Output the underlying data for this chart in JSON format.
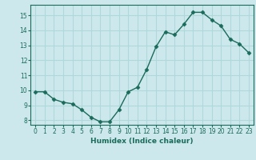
{
  "x": [
    0,
    1,
    2,
    3,
    4,
    5,
    6,
    7,
    8,
    9,
    10,
    11,
    12,
    13,
    14,
    15,
    16,
    17,
    18,
    19,
    20,
    21,
    22,
    23
  ],
  "y": [
    9.9,
    9.9,
    9.4,
    9.2,
    9.1,
    8.7,
    8.2,
    7.9,
    7.9,
    8.7,
    9.9,
    10.2,
    11.4,
    12.9,
    13.9,
    13.7,
    14.4,
    15.2,
    15.2,
    14.7,
    14.3,
    13.4,
    13.1,
    12.5
  ],
  "xlabel": "Humidex (Indice chaleur)",
  "ylim_min": 7.7,
  "ylim_max": 15.7,
  "xlim_min": -0.5,
  "xlim_max": 23.5,
  "yticks": [
    8,
    9,
    10,
    11,
    12,
    13,
    14,
    15
  ],
  "xticks": [
    0,
    1,
    2,
    3,
    4,
    5,
    6,
    7,
    8,
    9,
    10,
    11,
    12,
    13,
    14,
    15,
    16,
    17,
    18,
    19,
    20,
    21,
    22,
    23
  ],
  "line_color": "#1a6b5a",
  "marker": "D",
  "marker_size": 2.5,
  "bg_color": "#cce8ec",
  "grid_color": "#b0d8dc",
  "tick_color": "#1a6b5a",
  "label_color": "#1a6b5a",
  "tick_fontsize": 5.5,
  "xlabel_fontsize": 6.5,
  "linewidth": 1.0
}
